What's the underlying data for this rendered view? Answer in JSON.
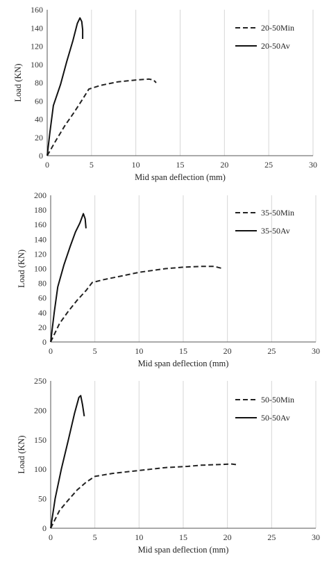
{
  "chart_data": [
    {
      "type": "line",
      "xlabel": "Mid span deflection (mm)",
      "ylabel": "Load (KN)",
      "xlim": [
        0,
        30
      ],
      "ylim": [
        0,
        160
      ],
      "xticks": [
        0,
        5,
        10,
        15,
        20,
        25,
        30
      ],
      "yticks": [
        0,
        20,
        40,
        60,
        80,
        100,
        120,
        140,
        160
      ],
      "grid": "vertical",
      "legend": "top-right",
      "series": [
        {
          "name": "20-50Min",
          "style": "dashed",
          "color": "#222222",
          "x": [
            0,
            1,
            2,
            3,
            4,
            4.7,
            6,
            8,
            10,
            11.5,
            12,
            12.3
          ],
          "y": [
            0,
            17,
            33,
            47,
            62,
            73,
            77,
            81,
            83,
            84,
            83,
            80
          ]
        },
        {
          "name": "20-50Av",
          "style": "solid",
          "color": "#111111",
          "x": [
            0,
            0.3,
            0.7,
            1.5,
            2.2,
            2.9,
            3.4,
            3.7,
            3.9,
            4.0,
            4.0
          ],
          "y": [
            0,
            25,
            55,
            78,
            103,
            126,
            145,
            151,
            147,
            138,
            128
          ]
        }
      ]
    },
    {
      "type": "line",
      "xlabel": "Mid span deflection (mm)",
      "ylabel": "Load (KN)",
      "xlim": [
        0,
        30
      ],
      "ylim": [
        0,
        200
      ],
      "xticks": [
        0,
        5,
        10,
        15,
        20,
        25,
        30
      ],
      "yticks": [
        0,
        20,
        40,
        60,
        80,
        100,
        120,
        140,
        160,
        180,
        200
      ],
      "grid": "vertical",
      "legend": "top-right",
      "series": [
        {
          "name": "35-50Min",
          "style": "dashed",
          "color": "#222222",
          "x": [
            0,
            1,
            2,
            3,
            4,
            4.7,
            6,
            8,
            10,
            13,
            15,
            17,
            18.5,
            19.5
          ],
          "y": [
            0,
            25,
            42,
            57,
            70,
            81,
            85,
            90,
            95,
            100,
            102,
            103,
            103,
            100
          ]
        },
        {
          "name": "35-50Av",
          "style": "solid",
          "color": "#111111",
          "x": [
            0,
            0.4,
            0.8,
            1.5,
            2.2,
            2.8,
            3.3,
            3.7,
            3.9,
            4.0
          ],
          "y": [
            0,
            40,
            75,
            105,
            130,
            150,
            162,
            175,
            168,
            155
          ]
        }
      ]
    },
    {
      "type": "line",
      "xlabel": "Mid span deflection (mm)",
      "ylabel": "Load (KN)",
      "xlim": [
        0,
        30
      ],
      "ylim": [
        0,
        250
      ],
      "xticks": [
        0,
        5,
        10,
        15,
        20,
        25,
        30
      ],
      "yticks": [
        0,
        50,
        100,
        150,
        200,
        250
      ],
      "grid": "vertical",
      "legend": "top-right",
      "series": [
        {
          "name": "50-50Min",
          "style": "dashed",
          "color": "#222222",
          "x": [
            0,
            1,
            2,
            3,
            4,
            5,
            7,
            10,
            13,
            15.5,
            17,
            19,
            20.5,
            21
          ],
          "y": [
            0,
            30,
            48,
            65,
            78,
            88,
            93,
            98,
            103,
            105,
            107,
            108,
            109,
            108
          ]
        },
        {
          "name": "50-50Av",
          "style": "solid",
          "color": "#111111",
          "x": [
            0,
            0.5,
            1.2,
            2,
            2.7,
            3.2,
            3.4,
            3.6,
            3.8
          ],
          "y": [
            0,
            50,
            100,
            150,
            195,
            222,
            225,
            210,
            190
          ]
        }
      ]
    }
  ]
}
